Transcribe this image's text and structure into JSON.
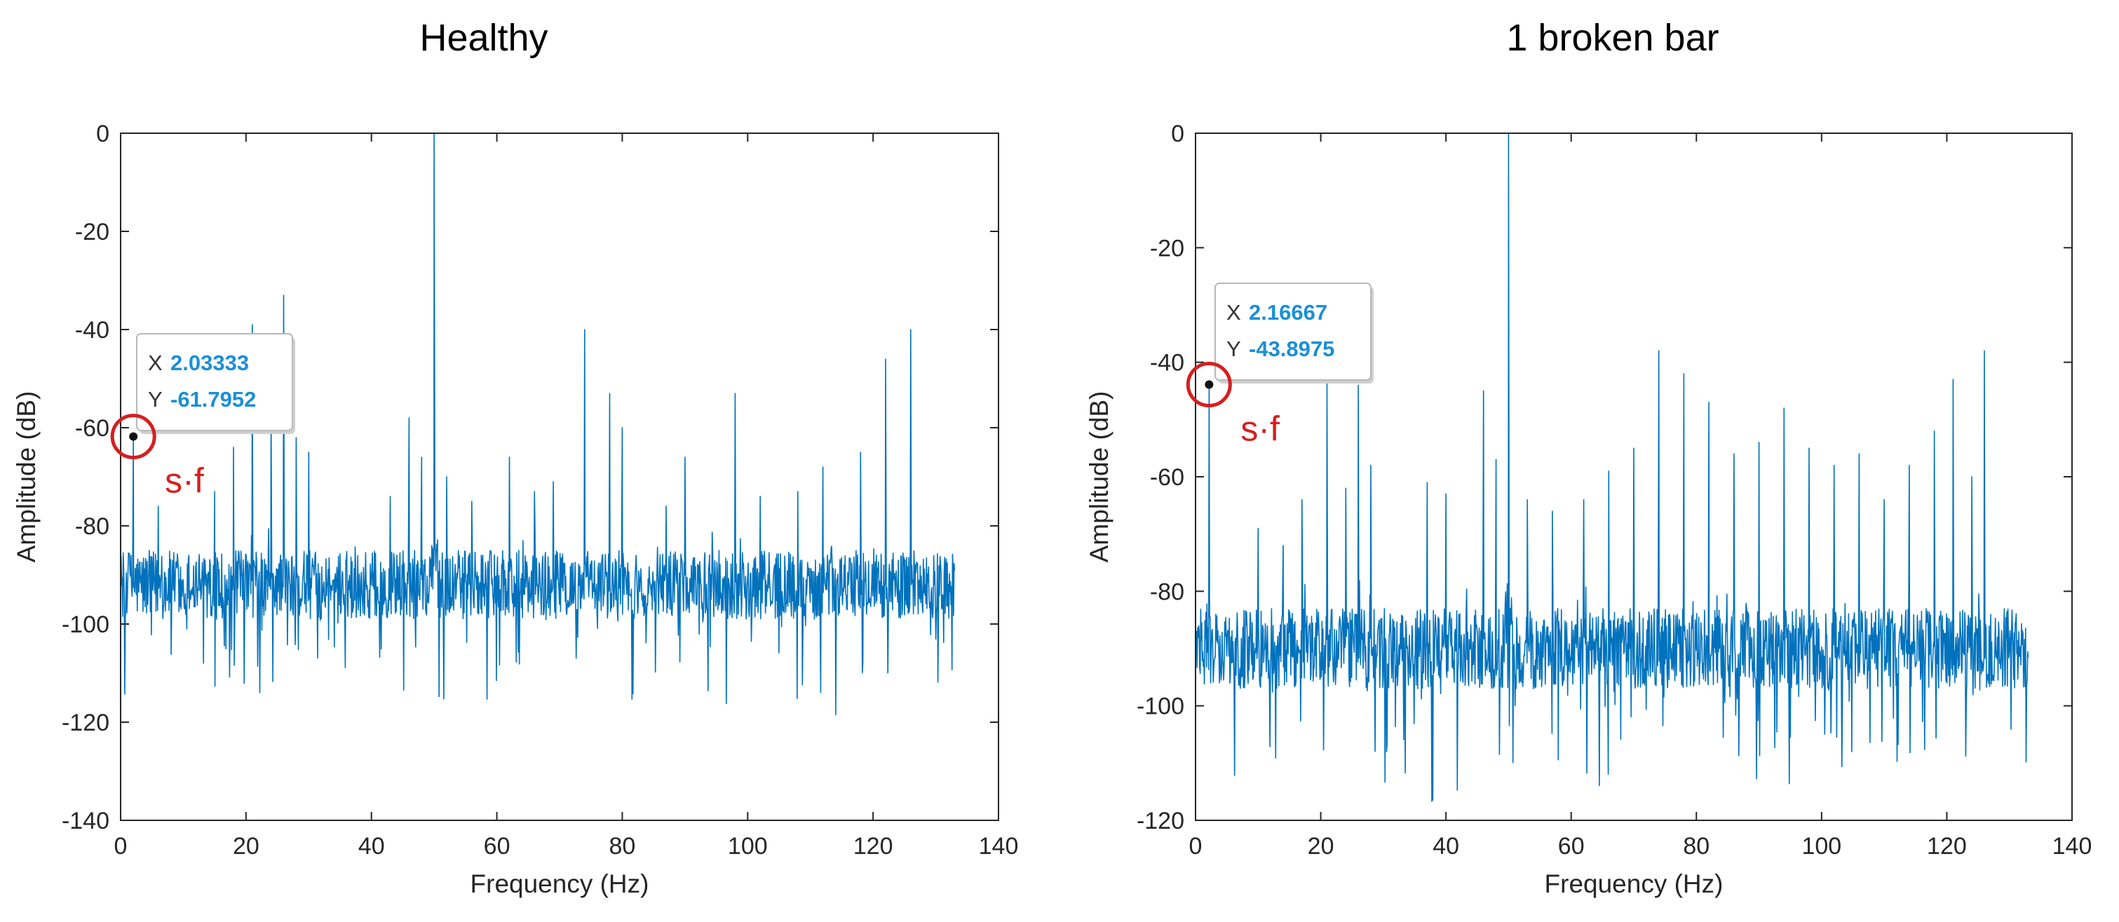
{
  "chart_data": [
    {
      "type": "line",
      "title": "Healthy",
      "xlabel": "Frequency (Hz)",
      "ylabel": "Amplitude (dB)",
      "xlim": [
        0,
        140
      ],
      "ylim": [
        -140,
        0
      ],
      "xticks": [
        "0",
        "20",
        "40",
        "60",
        "80",
        "100",
        "120",
        "140"
      ],
      "yticks": [
        "0",
        "-20",
        "-40",
        "-60",
        "-80",
        "-100",
        "-120",
        "-140"
      ],
      "series_color": "#0072bd",
      "series": [
        {
          "name": "spectrum",
          "x_end": 133,
          "noise_floor": -92,
          "peaks": [
            {
              "x": 2.03,
              "y": -61.8
            },
            {
              "x": 6,
              "y": -76
            },
            {
              "x": 15,
              "y": -73
            },
            {
              "x": 18,
              "y": -64
            },
            {
              "x": 21,
              "y": -39
            },
            {
              "x": 24,
              "y": -56
            },
            {
              "x": 26,
              "y": -33
            },
            {
              "x": 28,
              "y": -62
            },
            {
              "x": 30,
              "y": -65
            },
            {
              "x": 43,
              "y": -74
            },
            {
              "x": 46,
              "y": -58
            },
            {
              "x": 48,
              "y": -66
            },
            {
              "x": 50,
              "y": 0
            },
            {
              "x": 52,
              "y": -70
            },
            {
              "x": 56,
              "y": -75
            },
            {
              "x": 62,
              "y": -66
            },
            {
              "x": 66,
              "y": -73
            },
            {
              "x": 69,
              "y": -71
            },
            {
              "x": 74,
              "y": -40
            },
            {
              "x": 78,
              "y": -53
            },
            {
              "x": 80,
              "y": -60
            },
            {
              "x": 87,
              "y": -76
            },
            {
              "x": 90,
              "y": -66
            },
            {
              "x": 98,
              "y": -53
            },
            {
              "x": 102,
              "y": -74
            },
            {
              "x": 108,
              "y": -73
            },
            {
              "x": 112,
              "y": -68
            },
            {
              "x": 118,
              "y": -65
            },
            {
              "x": 122,
              "y": -46
            },
            {
              "x": 126,
              "y": -40
            }
          ]
        }
      ],
      "datatip": {
        "x_label": "X",
        "x_value": "2.03333",
        "y_label": "Y",
        "y_value": "-61.7952",
        "x": 2.03333,
        "y": -61.7952
      },
      "annotation": "s·f"
    },
    {
      "type": "line",
      "title": "1 broken bar",
      "xlabel": "Frequency (Hz)",
      "ylabel": "Amplitude (dB)",
      "xlim": [
        0,
        140
      ],
      "ylim": [
        -120,
        0
      ],
      "xticks": [
        "0",
        "20",
        "40",
        "60",
        "80",
        "100",
        "120",
        "140"
      ],
      "yticks": [
        "0",
        "-20",
        "-40",
        "-60",
        "-80",
        "-100",
        "-120"
      ],
      "series_color": "#0072bd",
      "series": [
        {
          "name": "spectrum",
          "x_end": 133,
          "noise_floor": -90,
          "peaks": [
            {
              "x": 2.17,
              "y": -43.9
            },
            {
              "x": 10,
              "y": -69
            },
            {
              "x": 14,
              "y": -72
            },
            {
              "x": 17,
              "y": -64
            },
            {
              "x": 21,
              "y": -43
            },
            {
              "x": 24,
              "y": -62
            },
            {
              "x": 26,
              "y": -44
            },
            {
              "x": 28,
              "y": -58
            },
            {
              "x": 37,
              "y": -61
            },
            {
              "x": 40,
              "y": -63
            },
            {
              "x": 46,
              "y": -45
            },
            {
              "x": 48,
              "y": -57
            },
            {
              "x": 50,
              "y": 0
            },
            {
              "x": 53,
              "y": -64
            },
            {
              "x": 57,
              "y": -66
            },
            {
              "x": 62,
              "y": -64
            },
            {
              "x": 66,
              "y": -59
            },
            {
              "x": 70,
              "y": -55
            },
            {
              "x": 74,
              "y": -38
            },
            {
              "x": 78,
              "y": -42
            },
            {
              "x": 82,
              "y": -47
            },
            {
              "x": 86,
              "y": -56
            },
            {
              "x": 90,
              "y": -54
            },
            {
              "x": 94,
              "y": -48
            },
            {
              "x": 98,
              "y": -55
            },
            {
              "x": 102,
              "y": -58
            },
            {
              "x": 106,
              "y": -56
            },
            {
              "x": 110,
              "y": -64
            },
            {
              "x": 114,
              "y": -58
            },
            {
              "x": 118,
              "y": -52
            },
            {
              "x": 121,
              "y": -43
            },
            {
              "x": 124,
              "y": -60
            },
            {
              "x": 126,
              "y": -38
            }
          ]
        }
      ],
      "datatip": {
        "x_label": "X",
        "x_value": "2.16667",
        "y_label": "Y",
        "y_value": "-43.8975",
        "x": 2.16667,
        "y": -43.8975
      },
      "annotation": "s·f"
    }
  ]
}
